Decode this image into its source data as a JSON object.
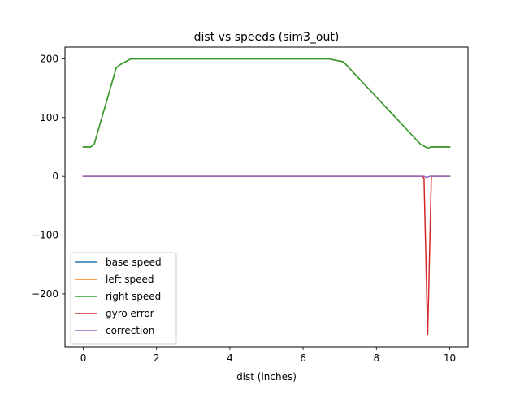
{
  "chart_data": {
    "type": "line",
    "title": "dist vs speeds (sim3_out)",
    "xlabel": "dist (inches)",
    "ylabel": "",
    "xlim": [
      -0.5,
      10.5
    ],
    "ylim": [
      -290,
      220
    ],
    "xticks": [
      0,
      2,
      4,
      6,
      8,
      10
    ],
    "xtick_labels": [
      "0",
      "2",
      "4",
      "6",
      "8",
      "10"
    ],
    "yticks": [
      -200,
      -100,
      0,
      100,
      200
    ],
    "ytick_labels": [
      "−200",
      "−100",
      "0",
      "100",
      "200"
    ],
    "grid": false,
    "legend_position": "lower-left",
    "series": [
      {
        "name": "base speed",
        "color": "#1f77b4",
        "x": [
          0,
          0.2,
          0.3,
          0.9,
          1.0,
          1.3,
          6.7,
          7.1,
          9.2,
          9.4,
          9.5,
          10
        ],
        "y": [
          50,
          50,
          55,
          185,
          190,
          200,
          200,
          195,
          55,
          48,
          50,
          50
        ]
      },
      {
        "name": "left speed",
        "color": "#ff7f0e",
        "x": [
          0,
          0.2,
          0.3,
          0.9,
          1.0,
          1.3,
          6.7,
          7.1,
          9.2,
          9.4,
          9.5,
          10
        ],
        "y": [
          50,
          50,
          55,
          185,
          190,
          200,
          200,
          195,
          55,
          48,
          50,
          50
        ]
      },
      {
        "name": "right speed",
        "color": "#2ca02c",
        "x": [
          0,
          0.2,
          0.3,
          0.9,
          1.0,
          1.3,
          6.7,
          7.1,
          9.2,
          9.4,
          9.5,
          10
        ],
        "y": [
          50,
          50,
          55,
          185,
          190,
          200,
          200,
          195,
          55,
          48,
          50,
          50
        ]
      },
      {
        "name": "gyro error",
        "color": "#d62728",
        "x": [
          0,
          9.25,
          9.3,
          9.4,
          9.5,
          9.55,
          10
        ],
        "y": [
          0,
          0,
          -3,
          -270,
          0,
          0,
          0
        ]
      },
      {
        "name": "correction",
        "color": "#9467bd",
        "x": [
          0,
          9.3,
          9.38,
          9.45,
          9.5,
          10
        ],
        "y": [
          0,
          0,
          -2,
          0,
          0,
          0
        ]
      }
    ]
  }
}
